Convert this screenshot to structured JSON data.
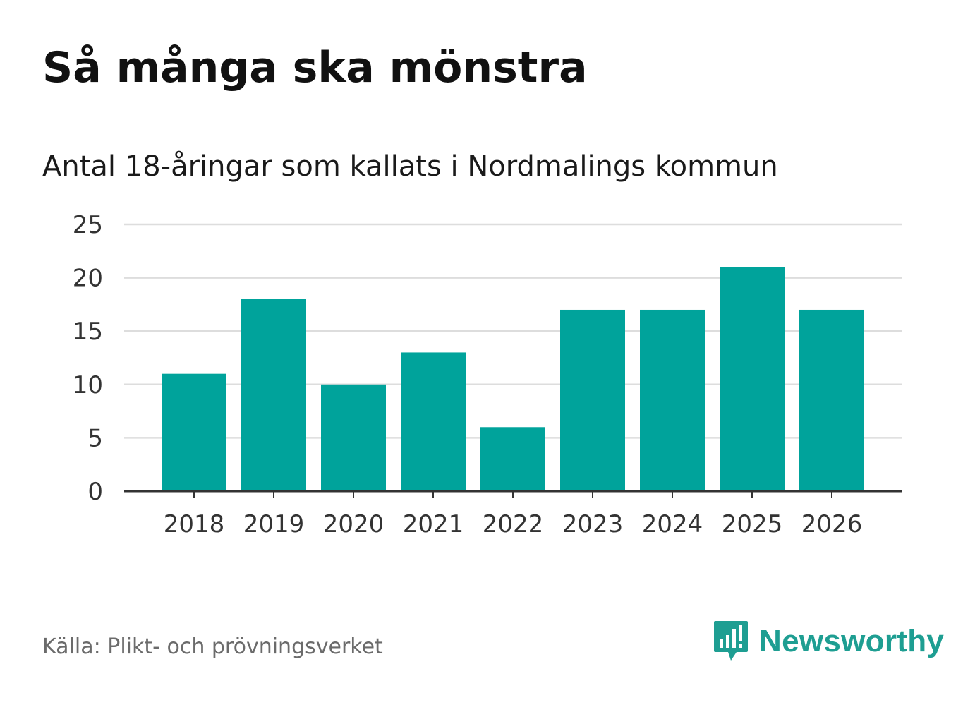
{
  "header": {
    "title": "Så många ska mönstra",
    "subtitle": "Antal 18-åringar som kallats i Nordmalings kommun"
  },
  "footer": {
    "source": "Källa: Plikt- och prövningsverket",
    "brand": "Newsworthy",
    "brand_icon": "bar-chart-speech-bubble-icon"
  },
  "colors": {
    "bar": "#00a39b",
    "grid": "#dddddd",
    "axis": "#333333",
    "brand": "#1e9e92"
  },
  "chart_data": {
    "type": "bar",
    "title": "Så många ska mönstra",
    "subtitle": "Antal 18-åringar som kallats i Nordmalings kommun",
    "xlabel": "",
    "ylabel": "",
    "categories": [
      "2018",
      "2019",
      "2020",
      "2021",
      "2022",
      "2023",
      "2024",
      "2025",
      "2026"
    ],
    "values": [
      11,
      18,
      10,
      13,
      6,
      17,
      17,
      21,
      17
    ],
    "ylim": [
      0,
      25
    ],
    "yticks": [
      0,
      5,
      10,
      15,
      20,
      25
    ],
    "grid": true,
    "legend": "none"
  }
}
